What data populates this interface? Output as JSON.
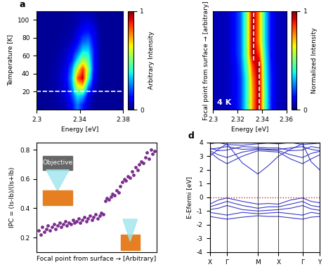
{
  "chart_data": [
    {
      "type": "heatmap",
      "panel_label": "a",
      "xlabel": "Energy [eV]",
      "ylabel": "Temperature [K]",
      "xlim": [
        2.3,
        2.38
      ],
      "xticks": [
        2.3,
        2.34,
        2.38
      ],
      "ylim": [
        0,
        110
      ],
      "yticks": [
        20,
        40,
        60,
        80,
        100
      ],
      "color": "jet",
      "cells": [
        [
          0.02,
          0.02,
          0.02,
          0.03,
          0.04,
          0.06,
          0.12,
          0.25,
          0.15,
          0.06,
          0.03,
          0.02,
          0.02,
          0.02,
          0.02,
          0.02
        ],
        [
          0.02,
          0.02,
          0.02,
          0.03,
          0.05,
          0.08,
          0.18,
          0.35,
          0.3,
          0.1,
          0.04,
          0.02,
          0.02,
          0.02,
          0.02,
          0.02
        ],
        [
          0.02,
          0.02,
          0.03,
          0.04,
          0.06,
          0.1,
          0.25,
          0.6,
          0.65,
          0.25,
          0.08,
          0.03,
          0.02,
          0.02,
          0.02,
          0.02
        ],
        [
          0.02,
          0.02,
          0.03,
          0.04,
          0.07,
          0.12,
          0.3,
          0.8,
          0.95,
          0.45,
          0.12,
          0.04,
          0.02,
          0.02,
          0.02,
          0.02
        ],
        [
          0.02,
          0.02,
          0.03,
          0.04,
          0.06,
          0.1,
          0.25,
          0.6,
          0.85,
          0.55,
          0.15,
          0.04,
          0.02,
          0.02,
          0.02,
          0.02
        ],
        [
          0.02,
          0.02,
          0.02,
          0.03,
          0.05,
          0.08,
          0.15,
          0.35,
          0.55,
          0.45,
          0.15,
          0.04,
          0.02,
          0.02,
          0.02,
          0.02
        ],
        [
          0.02,
          0.02,
          0.02,
          0.03,
          0.04,
          0.06,
          0.1,
          0.2,
          0.35,
          0.35,
          0.15,
          0.04,
          0.02,
          0.02,
          0.02,
          0.02
        ],
        [
          0.02,
          0.02,
          0.02,
          0.02,
          0.03,
          0.04,
          0.06,
          0.12,
          0.22,
          0.25,
          0.12,
          0.04,
          0.02,
          0.02,
          0.02,
          0.02
        ],
        [
          0.02,
          0.02,
          0.02,
          0.02,
          0.03,
          0.03,
          0.04,
          0.08,
          0.14,
          0.16,
          0.1,
          0.04,
          0.02,
          0.02,
          0.02,
          0.02
        ],
        [
          0.02,
          0.02,
          0.02,
          0.02,
          0.02,
          0.03,
          0.03,
          0.05,
          0.08,
          0.1,
          0.07,
          0.03,
          0.02,
          0.02,
          0.02,
          0.02
        ],
        [
          0.02,
          0.02,
          0.02,
          0.02,
          0.02,
          0.02,
          0.03,
          0.04,
          0.05,
          0.05,
          0.04,
          0.02,
          0.02,
          0.02,
          0.02,
          0.02
        ]
      ],
      "colorbar": {
        "label": "Arbitrary Intensity",
        "range": [
          0,
          1
        ],
        "ticks": [
          0,
          1
        ]
      },
      "dashed_lines": [
        {
          "y": 20
        }
      ]
    },
    {
      "type": "heatmap",
      "xlabel": "Energy [eV]",
      "ylabel": "Focal point from surface → [arbitrary]",
      "xlim": [
        2.3,
        2.36
      ],
      "xticks": [
        2.3,
        2.32,
        2.34,
        2.36
      ],
      "ylim": [
        0,
        1
      ],
      "tick_labels": "x",
      "color": "jet",
      "annotation": "4 K",
      "cells": [
        [
          0.05,
          0.05,
          0.06,
          0.1,
          0.18,
          0.4,
          0.75,
          1.0,
          0.45,
          0.15,
          0.06,
          0.05
        ],
        [
          0.05,
          0.05,
          0.06,
          0.1,
          0.18,
          0.4,
          0.75,
          1.0,
          0.45,
          0.15,
          0.06,
          0.05
        ],
        [
          0.05,
          0.05,
          0.06,
          0.1,
          0.18,
          0.4,
          0.78,
          1.0,
          0.42,
          0.15,
          0.06,
          0.05
        ],
        [
          0.05,
          0.05,
          0.06,
          0.1,
          0.2,
          0.45,
          0.85,
          1.0,
          0.4,
          0.14,
          0.06,
          0.05
        ],
        [
          0.05,
          0.05,
          0.06,
          0.12,
          0.22,
          0.5,
          1.0,
          0.85,
          0.38,
          0.12,
          0.06,
          0.05
        ],
        [
          0.05,
          0.05,
          0.06,
          0.12,
          0.22,
          0.5,
          1.0,
          0.75,
          0.35,
          0.12,
          0.06,
          0.05
        ],
        [
          0.05,
          0.05,
          0.06,
          0.12,
          0.22,
          0.5,
          1.0,
          0.75,
          0.35,
          0.12,
          0.06,
          0.05
        ],
        [
          0.05,
          0.05,
          0.06,
          0.12,
          0.22,
          0.5,
          1.0,
          0.75,
          0.35,
          0.12,
          0.06,
          0.05
        ]
      ],
      "colorbar": {
        "label": "Normalized Intensity",
        "range": [
          0,
          1
        ],
        "ticks": [
          0,
          1
        ]
      },
      "dashed_lines": [
        {
          "x": 2.333,
          "y": [
            0.5,
            1
          ]
        },
        {
          "x": 2.338,
          "y": [
            0,
            0.5
          ]
        }
      ]
    },
    {
      "type": "scatter",
      "xlabel": "Focal point from surface → [Arbitrary]",
      "ylabel": "IPC = (Is-Ib)/(Is+Ib)",
      "annotation": "Objective",
      "xlim": [
        0,
        63
      ],
      "ylim": [
        0.1,
        0.85
      ],
      "yticks": [
        0.2,
        0.4,
        0.6,
        0.8
      ],
      "tick_labels": "y",
      "color": "#7b2d8e",
      "marker": "o",
      "x": [
        1,
        2,
        3,
        4,
        5,
        6,
        7,
        8,
        9,
        10,
        11,
        12,
        13,
        14,
        15,
        16,
        17,
        18,
        19,
        20,
        21,
        22,
        23,
        24,
        25,
        26,
        27,
        28,
        29,
        30,
        31,
        32,
        33,
        34,
        35,
        36,
        37,
        38,
        39,
        40,
        41,
        42,
        43,
        44,
        45,
        46,
        47,
        48,
        49,
        50,
        51,
        52,
        53,
        54,
        55,
        56,
        57,
        58,
        59,
        60,
        61,
        62
      ],
      "values": [
        0.25,
        0.22,
        0.27,
        0.24,
        0.26,
        0.28,
        0.25,
        0.27,
        0.29,
        0.26,
        0.28,
        0.3,
        0.27,
        0.29,
        0.31,
        0.28,
        0.3,
        0.29,
        0.32,
        0.3,
        0.31,
        0.33,
        0.3,
        0.32,
        0.34,
        0.31,
        0.33,
        0.35,
        0.32,
        0.34,
        0.36,
        0.33,
        0.35,
        0.37,
        0.36,
        0.45,
        0.47,
        0.46,
        0.48,
        0.5,
        0.49,
        0.52,
        0.51,
        0.55,
        0.58,
        0.6,
        0.59,
        0.62,
        0.61,
        0.65,
        0.63,
        0.68,
        0.66,
        0.7,
        0.72,
        0.71,
        0.75,
        0.78,
        0.74,
        0.8,
        0.77,
        0.79
      ]
    },
    {
      "type": "line",
      "panel_label": "d",
      "ylabel": "E-Efermi [eV]",
      "xlim": [
        0,
        3.2
      ],
      "xticks": [
        {
          "value": 0,
          "label": "X"
        },
        {
          "value": 0.5,
          "label": "Γ"
        },
        {
          "value": 1.4,
          "label": "M"
        },
        {
          "value": 2.0,
          "label": "X"
        },
        {
          "value": 2.7,
          "label": "Γ"
        },
        {
          "value": 3.2,
          "label": "Y"
        }
      ],
      "ylim": [
        -4,
        4
      ],
      "yticks": [
        -4,
        -3,
        -2,
        -1,
        0,
        1,
        2,
        3,
        4
      ],
      "color": "#3a3ac8",
      "fermi_level": {
        "y": 0,
        "color": "#d62728",
        "line_style": "dotted"
      },
      "x": [
        0,
        0.25,
        0.5,
        0.95,
        1.4,
        1.7,
        2.0,
        2.35,
        2.7,
        2.95,
        3.2
      ],
      "series": [
        {
          "values": [
            3.0,
            3.5,
            3.9,
            2.5,
            1.7,
            2.3,
            3.0,
            3.5,
            3.9,
            2.6,
            2.0
          ]
        },
        {
          "values": [
            3.3,
            2.8,
            2.45,
            3.0,
            3.4,
            3.35,
            3.3,
            2.8,
            2.45,
            2.8,
            3.1
          ]
        },
        {
          "values": [
            3.4,
            3.1,
            2.9,
            3.3,
            3.5,
            3.45,
            3.4,
            3.1,
            2.9,
            3.2,
            3.35
          ]
        },
        {
          "values": [
            3.5,
            3.6,
            3.7,
            3.5,
            3.55,
            3.5,
            3.5,
            3.6,
            3.7,
            3.5,
            3.4
          ]
        },
        {
          "values": [
            3.6,
            3.4,
            3.45,
            3.7,
            3.65,
            3.6,
            3.6,
            3.4,
            3.45,
            3.7,
            3.6
          ]
        },
        {
          "values": [
            3.9,
            4.0,
            3.85,
            3.8,
            3.9,
            3.95,
            3.9,
            4.0,
            3.85,
            3.9,
            3.95
          ]
        },
        {
          "values": [
            -0.5,
            -0.2,
            -0.05,
            -0.3,
            -0.5,
            -0.45,
            -0.5,
            -0.2,
            -0.05,
            -0.3,
            -0.4
          ]
        },
        {
          "values": [
            -0.7,
            -0.5,
            -0.3,
            -0.6,
            -0.8,
            -0.7,
            -0.7,
            -0.5,
            -0.3,
            -0.6,
            -0.7
          ]
        },
        {
          "values": [
            -0.9,
            -0.8,
            -0.6,
            -0.9,
            -1.0,
            -0.95,
            -0.9,
            -0.8,
            -0.6,
            -0.85,
            -0.95
          ]
        },
        {
          "values": [
            -1.1,
            -1.2,
            -1.3,
            -1.1,
            -1.2,
            -1.15,
            -1.1,
            -1.2,
            -1.3,
            -1.1,
            -1.2
          ]
        },
        {
          "values": [
            -1.4,
            -1.5,
            -1.6,
            -1.45,
            -1.35,
            -1.4,
            -1.4,
            -1.5,
            -1.6,
            -1.45,
            -1.4
          ]
        }
      ]
    }
  ]
}
